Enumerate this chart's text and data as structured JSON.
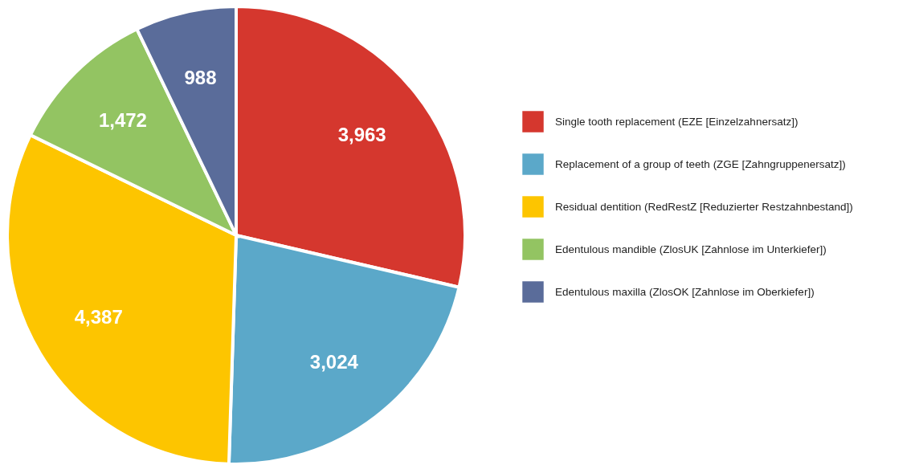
{
  "chart_data": {
    "type": "pie",
    "categories": [
      "Single tooth replacement (EZE [Einzelzahnersatz])",
      "Replacement of a group of teeth (ZGE [Zahngruppenersatz])",
      "Residual dentition (RedRestZ [Reduzierter Restzahnbestand])",
      "Edentulous mandible (ZlosUK [Zahnlose im Unterkiefer])",
      "Edentulous maxilla (ZlosOK [Zahnlose im Oberkiefer])"
    ],
    "values": [
      3963,
      3024,
      4387,
      1472,
      988
    ],
    "colors": [
      "#d5372e",
      "#5ba8c9",
      "#fdc500",
      "#93c462",
      "#5a6c9a"
    ],
    "value_labels": [
      "3,963",
      "3,024",
      "4,387",
      "1,472",
      "988"
    ],
    "legend": "right"
  }
}
